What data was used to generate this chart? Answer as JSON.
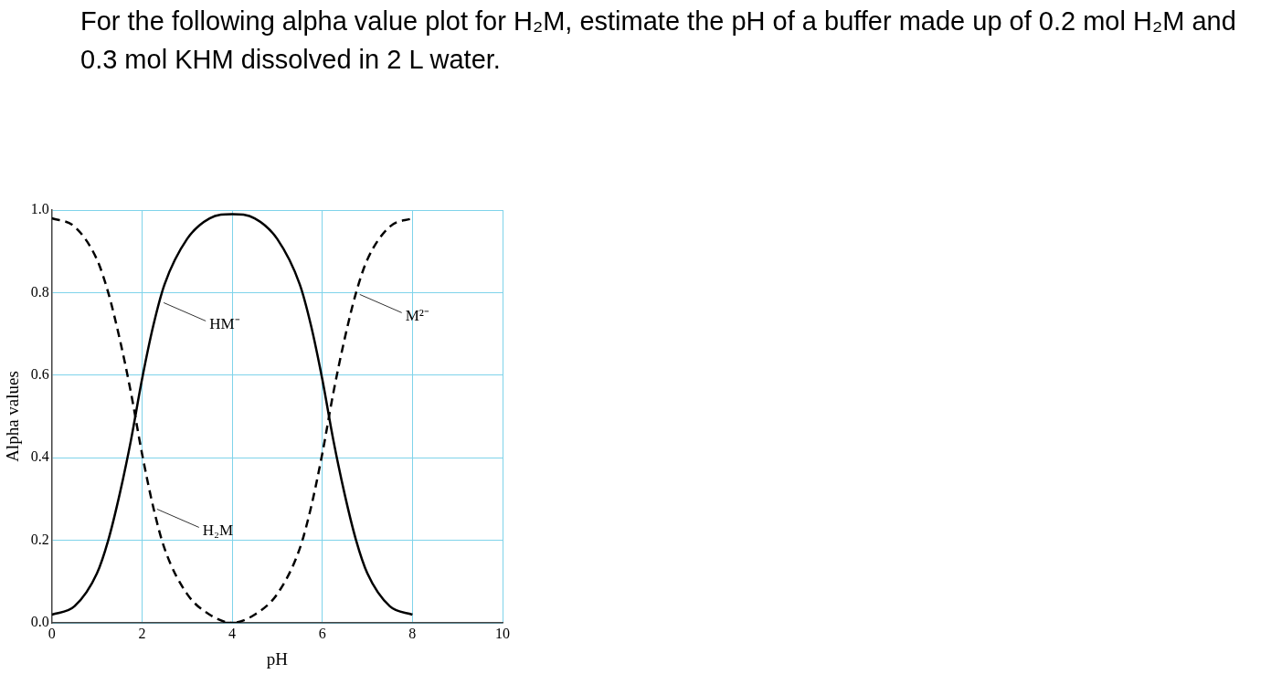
{
  "chart_data": {
    "type": "line",
    "title": "For the following alpha value plot for H₂M, estimate the pH of a buffer made up of 0.2 mol H₂M and 0.3 mol KHM dissolved in 2 L water.",
    "xlabel": "pH",
    "ylabel": "Alpha values",
    "series": [
      {
        "color": "#000000",
        "line_style": "dashed",
        "x": [
          0,
          0.5,
          1,
          1.25,
          1.5,
          1.75,
          2,
          2.25,
          2.5,
          3,
          3.5,
          4,
          4.2
        ],
        "values": [
          0.98,
          0.96,
          0.88,
          0.8,
          0.69,
          0.56,
          0.41,
          0.28,
          0.18,
          0.07,
          0.02,
          0.0,
          0.0
        ]
      },
      {
        "color": "#000000",
        "line_style": "solid",
        "x": [
          0,
          0.5,
          1,
          1.25,
          1.5,
          1.75,
          2,
          2.25,
          2.5,
          3,
          3.5,
          4,
          4.5,
          5,
          5.5,
          5.75,
          6,
          6.25,
          6.5,
          6.75,
          7,
          7.5,
          8
        ],
        "values": [
          0.02,
          0.04,
          0.12,
          0.2,
          0.31,
          0.44,
          0.59,
          0.72,
          0.82,
          0.93,
          0.98,
          0.99,
          0.98,
          0.93,
          0.82,
          0.72,
          0.59,
          0.44,
          0.31,
          0.2,
          0.12,
          0.04,
          0.02
        ]
      },
      {
        "color": "#000000",
        "line_style": "dashed",
        "x": [
          3.8,
          4,
          4.5,
          5,
          5.5,
          5.75,
          6,
          6.25,
          6.5,
          6.75,
          7,
          7.5,
          8
        ],
        "values": [
          0.0,
          0.0,
          0.02,
          0.07,
          0.18,
          0.28,
          0.41,
          0.56,
          0.69,
          0.8,
          0.88,
          0.96,
          0.98
        ]
      }
    ],
    "xlim": [
      0,
      10
    ],
    "xticks": [
      0,
      2,
      4,
      6,
      8,
      10
    ],
    "ylim": [
      0,
      1
    ],
    "yticks": [
      {
        "value": 0,
        "label": "0.0"
      },
      {
        "value": 0.2,
        "label": "0.2"
      },
      {
        "value": 0.4,
        "label": "0.4"
      },
      {
        "value": 0.6,
        "label": "0.6"
      },
      {
        "value": 0.8,
        "label": "0.8"
      },
      {
        "value": 1,
        "label": "1.0"
      }
    ],
    "grid": true,
    "legend": false,
    "marker": "none",
    "annotations": [
      {
        "text": "HM⁻",
        "x": 2.4,
        "y": 0.78
      },
      {
        "text": "H₂M",
        "x": 2.25,
        "y": 0.28
      },
      {
        "text": "M²⁻",
        "x": 6.75,
        "y": 0.8
      }
    ]
  }
}
